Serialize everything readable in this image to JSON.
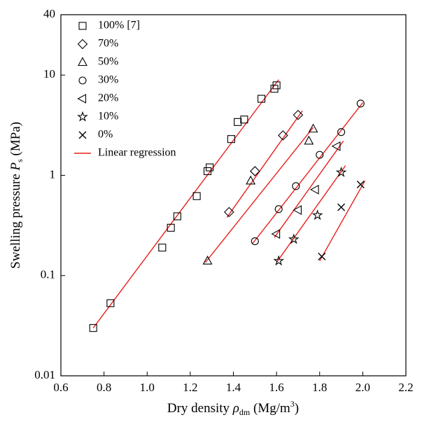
{
  "chart_data": {
    "type": "scatter",
    "x_label": [
      "Dry density ",
      "ρ",
      "dm",
      "  (Mg/m",
      "3",
      ")"
    ],
    "y_label": [
      "Swelling pressure ",
      "P",
      "s",
      " (MPa)"
    ],
    "xlim": [
      0.6,
      2.2
    ],
    "xticks": [
      0.6,
      0.8,
      {
        "value": 1,
        "label": "1.0"
      },
      1.2,
      1.4,
      1.6,
      1.8,
      {
        "value": 2,
        "label": "2.0"
      },
      2.2
    ],
    "ylim": [
      0.01,
      40
    ],
    "yticks": [
      0.01,
      0.1,
      1,
      10,
      40
    ],
    "y_scale": "log",
    "legend": "top-left",
    "series": [
      {
        "name": "100% [7]",
        "marker": "square",
        "color": "#000000",
        "x": [
          0.75,
          0.83,
          1.07,
          1.11,
          1.14,
          1.23,
          1.28,
          1.29,
          1.39,
          1.42,
          1.45,
          1.53,
          1.59,
          1.6
        ],
        "values": [
          0.03,
          0.053,
          0.19,
          0.3,
          0.39,
          0.62,
          1.1,
          1.2,
          2.3,
          3.4,
          3.6,
          5.8,
          7.3,
          7.9
        ]
      },
      {
        "name": "70%",
        "marker": "diamond",
        "color": "#000000",
        "x": [
          1.38,
          1.5,
          1.63,
          1.7
        ],
        "values": [
          0.43,
          1.1,
          2.5,
          4.0
        ]
      },
      {
        "name": "50%",
        "marker": "triangle",
        "color": "#000000",
        "x": [
          1.28,
          1.48,
          1.75,
          1.77
        ],
        "values": [
          0.14,
          0.88,
          2.2,
          2.9
        ]
      },
      {
        "name": "30%",
        "marker": "circle",
        "color": "#000000",
        "x": [
          1.5,
          1.61,
          1.69,
          1.8,
          1.9,
          1.99
        ],
        "values": [
          0.22,
          0.46,
          0.78,
          1.6,
          2.7,
          5.2
        ]
      },
      {
        "name": "20%",
        "marker": "triangle-left",
        "color": "#000000",
        "x": [
          1.6,
          1.7,
          1.78,
          1.88
        ],
        "values": [
          0.26,
          0.45,
          0.72,
          1.95
        ]
      },
      {
        "name": "10%",
        "marker": "star",
        "color": "#000000",
        "x": [
          1.61,
          1.68,
          1.79,
          1.9
        ],
        "values": [
          0.14,
          0.23,
          0.4,
          1.07
        ]
      },
      {
        "name": "0%",
        "marker": "x",
        "color": "#000000",
        "x": [
          1.81,
          1.9,
          1.99
        ],
        "values": [
          0.155,
          0.48,
          0.81
        ]
      }
    ],
    "regression": {
      "name": "Linear regression",
      "color": "#e8201e",
      "lines": [
        {
          "x": [
            0.75,
            1.61
          ],
          "values": [
            0.03,
            9.0
          ]
        },
        {
          "x": [
            1.37,
            1.72
          ],
          "values": [
            0.38,
            4.4
          ]
        },
        {
          "x": [
            1.27,
            1.77
          ],
          "values": [
            0.135,
            3.0
          ]
        },
        {
          "x": [
            1.49,
            2.0
          ],
          "values": [
            0.21,
            5.3
          ]
        },
        {
          "x": [
            1.59,
            1.91
          ],
          "values": [
            0.24,
            2.2
          ]
        },
        {
          "x": [
            1.6,
            1.92
          ],
          "values": [
            0.135,
            1.25
          ]
        },
        {
          "x": [
            1.8,
            2.01
          ],
          "values": [
            0.14,
            0.88
          ]
        }
      ]
    }
  }
}
